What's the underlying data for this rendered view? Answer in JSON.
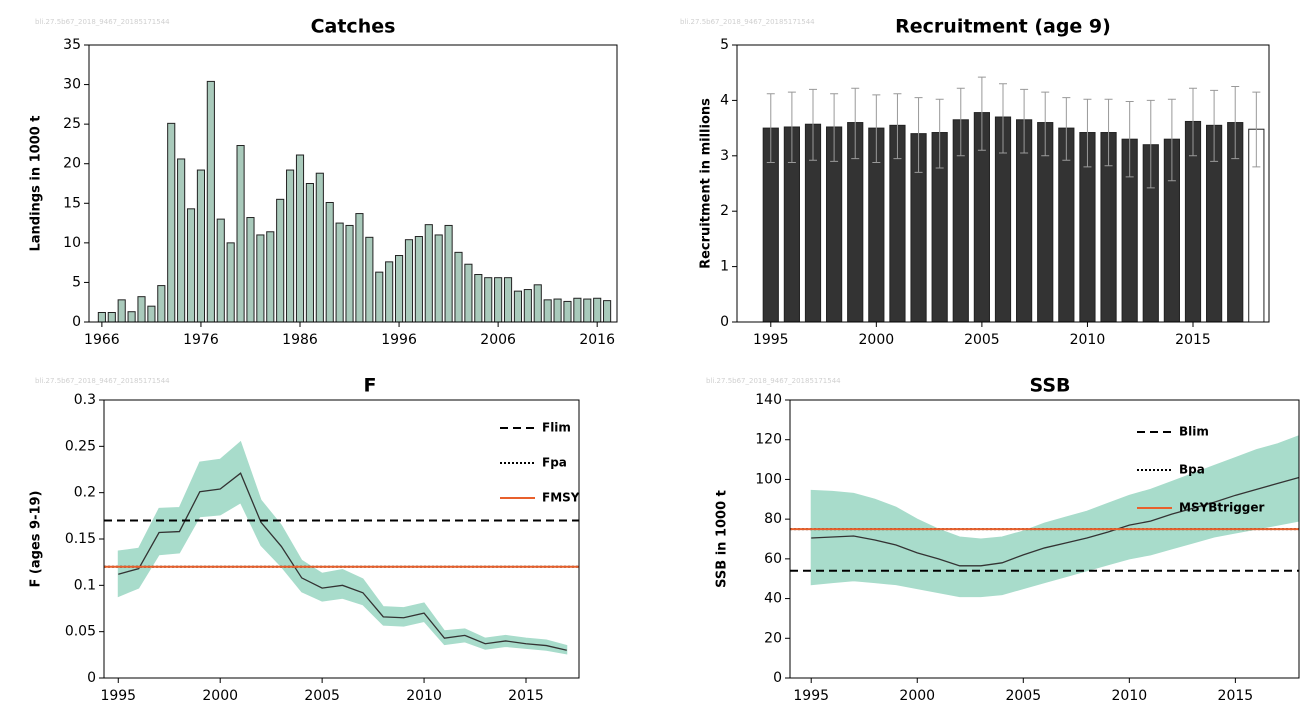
{
  "chart_data": [
    {
      "type": "bar",
      "title": "Catches",
      "watermark": "bli.27.5b67_2018_9467_20185171544",
      "ylabel": "Landings in 1000 t",
      "x": [
        1966,
        1967,
        1968,
        1969,
        1970,
        1971,
        1972,
        1973,
        1974,
        1975,
        1976,
        1977,
        1978,
        1979,
        1980,
        1981,
        1982,
        1983,
        1984,
        1985,
        1986,
        1987,
        1988,
        1989,
        1990,
        1991,
        1992,
        1993,
        1994,
        1995,
        1996,
        1997,
        1998,
        1999,
        2000,
        2001,
        2002,
        2003,
        2004,
        2005,
        2006,
        2007,
        2008,
        2009,
        2010,
        2011,
        2012,
        2013,
        2014,
        2015,
        2016,
        2017
      ],
      "values": [
        1.2,
        1.2,
        2.8,
        1.3,
        3.2,
        2.0,
        4.6,
        25.1,
        20.6,
        14.3,
        19.2,
        30.4,
        13.0,
        10.0,
        22.3,
        13.2,
        11.0,
        11.4,
        15.5,
        19.2,
        21.1,
        17.5,
        18.8,
        15.1,
        12.5,
        12.2,
        13.7,
        10.7,
        6.3,
        7.6,
        8.4,
        10.4,
        10.8,
        12.3,
        11.0,
        12.2,
        8.8,
        7.3,
        6.0,
        5.6,
        5.6,
        5.6,
        3.9,
        4.1,
        4.7,
        2.8,
        2.9,
        2.6,
        3.0,
        2.9,
        3.0,
        2.7
      ],
      "color": "#a9cabb",
      "xlim": [
        1964.7,
        2018
      ],
      "xticks": [
        1966,
        1976,
        1986,
        1996,
        2006,
        2016
      ],
      "ylim": [
        0,
        35
      ],
      "yticks": [
        0,
        5,
        10,
        15,
        20,
        25,
        30,
        35
      ]
    },
    {
      "type": "bar",
      "title": "Recruitment (age 9)",
      "watermark": "bli.27.5b67_2018_9467_20185171544",
      "ylabel": "Recruitment in millions",
      "x": [
        1995,
        1996,
        1997,
        1998,
        1999,
        2000,
        2001,
        2002,
        2003,
        2004,
        2005,
        2006,
        2007,
        2008,
        2009,
        2010,
        2011,
        2012,
        2013,
        2014,
        2015,
        2016,
        2017,
        2018
      ],
      "values": [
        3.5,
        3.52,
        3.57,
        3.52,
        3.6,
        3.5,
        3.55,
        3.4,
        3.42,
        3.65,
        3.78,
        3.7,
        3.65,
        3.6,
        3.5,
        3.42,
        3.42,
        3.3,
        3.2,
        3.3,
        3.62,
        3.55,
        3.6,
        3.48
      ],
      "low": [
        2.88,
        2.88,
        2.92,
        2.9,
        2.95,
        2.88,
        2.95,
        2.7,
        2.78,
        3.0,
        3.1,
        3.05,
        3.05,
        3.0,
        2.92,
        2.8,
        2.82,
        2.62,
        2.42,
        2.55,
        3.0,
        2.9,
        2.95,
        2.8
      ],
      "high": [
        4.12,
        4.15,
        4.2,
        4.12,
        4.22,
        4.1,
        4.12,
        4.05,
        4.02,
        4.22,
        4.42,
        4.3,
        4.2,
        4.15,
        4.05,
        4.02,
        4.02,
        3.98,
        4.0,
        4.02,
        4.22,
        4.18,
        4.25,
        4.15
      ],
      "colors": [
        "#333333",
        "#333333",
        "#333333",
        "#333333",
        "#333333",
        "#333333",
        "#333333",
        "#333333",
        "#333333",
        "#333333",
        "#333333",
        "#333333",
        "#333333",
        "#333333",
        "#333333",
        "#333333",
        "#333333",
        "#333333",
        "#333333",
        "#333333",
        "#333333",
        "#333333",
        "#333333",
        "#ffffff"
      ],
      "error_color": "#999999",
      "xlim": [
        1993.4,
        2018.6
      ],
      "xticks": [
        1995,
        2000,
        2005,
        2010,
        2015
      ],
      "ylim": [
        0,
        5
      ],
      "yticks": [
        0,
        1,
        2,
        3,
        4,
        5
      ]
    },
    {
      "type": "line",
      "title": "F",
      "watermark": "bli.27.5b67_2018_9467_20185171544",
      "ylabel": "F (ages 9-19)",
      "x": [
        1995,
        1996,
        1997,
        1998,
        1999,
        2000,
        2001,
        2002,
        2003,
        2004,
        2005,
        2006,
        2007,
        2008,
        2009,
        2010,
        2011,
        2012,
        2013,
        2014,
        2015,
        2016,
        2017
      ],
      "series": [
        {
          "color": "#333333",
          "band_color": "#a8dccb",
          "values": [
            0.112,
            0.118,
            0.157,
            0.158,
            0.201,
            0.204,
            0.221,
            0.168,
            0.142,
            0.108,
            0.097,
            0.1,
            0.092,
            0.066,
            0.065,
            0.07,
            0.043,
            0.046,
            0.037,
            0.04,
            0.037,
            0.035,
            0.03
          ],
          "high": [
            0.137,
            0.14,
            0.183,
            0.184,
            0.233,
            0.236,
            0.255,
            0.192,
            0.165,
            0.127,
            0.113,
            0.117,
            0.107,
            0.077,
            0.076,
            0.081,
            0.051,
            0.053,
            0.043,
            0.046,
            0.043,
            0.041,
            0.035
          ],
          "low": [
            0.088,
            0.097,
            0.133,
            0.135,
            0.174,
            0.176,
            0.189,
            0.143,
            0.12,
            0.093,
            0.083,
            0.086,
            0.079,
            0.057,
            0.056,
            0.061,
            0.036,
            0.039,
            0.031,
            0.034,
            0.032,
            0.03,
            0.026
          ]
        }
      ],
      "ref_lines": [
        {
          "name": "Flim",
          "value": 0.17,
          "color": "#000000",
          "style": "dashed"
        },
        {
          "name": "Fpa",
          "value": 0.12,
          "color": "#000000",
          "style": "dotted"
        },
        {
          "name": "FMSY",
          "value": 0.12,
          "color": "#e8602c",
          "style": "solid"
        }
      ],
      "xlim": [
        1994.3,
        2017.6
      ],
      "xticks": [
        1995,
        2000,
        2005,
        2010,
        2015
      ],
      "ylim": [
        0,
        0.3
      ],
      "yticks": [
        0,
        0.05,
        0.1,
        0.15,
        0.2,
        0.25,
        0.3
      ]
    },
    {
      "type": "line",
      "title": "SSB",
      "watermark": "bli.27.5b67_2018_9467_20185171544",
      "ylabel": "SSB in 1000 t",
      "x": [
        1995,
        1996,
        1997,
        1998,
        1999,
        2000,
        2001,
        2002,
        2003,
        2004,
        2005,
        2006,
        2007,
        2008,
        2009,
        2010,
        2011,
        2012,
        2013,
        2014,
        2015,
        2016,
        2017,
        2018
      ],
      "series": [
        {
          "color": "#333333",
          "band_color": "#a8dccb",
          "values": [
            70.5,
            71,
            71.5,
            69.5,
            67,
            63,
            60,
            56.5,
            56.5,
            58,
            62,
            65.5,
            68,
            70.5,
            73.5,
            77,
            79,
            82.5,
            85.5,
            88.5,
            92,
            95,
            98,
            101
          ],
          "high": [
            94.5,
            94,
            93,
            90,
            86,
            80,
            75,
            71,
            70,
            71,
            74,
            78,
            81,
            84,
            88,
            92,
            95,
            99,
            103,
            107,
            111,
            115,
            118,
            122
          ],
          "low": [
            47,
            48,
            49,
            48,
            47,
            45,
            43,
            41,
            41,
            42,
            45,
            48,
            51,
            54,
            57,
            60,
            62,
            65,
            68,
            71,
            73,
            75,
            77,
            79
          ]
        }
      ],
      "ref_lines": [
        {
          "name": "Blim",
          "value": 54,
          "color": "#000000",
          "style": "dashed"
        },
        {
          "name": "Bpa",
          "value": 75,
          "color": "#000000",
          "style": "dotted"
        },
        {
          "name": "MSYBtrigger",
          "value": 75,
          "color": "#e8602c",
          "style": "solid"
        }
      ],
      "xlim": [
        1994,
        2018
      ],
      "xticks": [
        1995,
        2000,
        2005,
        2010,
        2015
      ],
      "ylim": [
        0,
        140
      ],
      "yticks": [
        0,
        20,
        40,
        60,
        80,
        100,
        120,
        140
      ]
    }
  ]
}
